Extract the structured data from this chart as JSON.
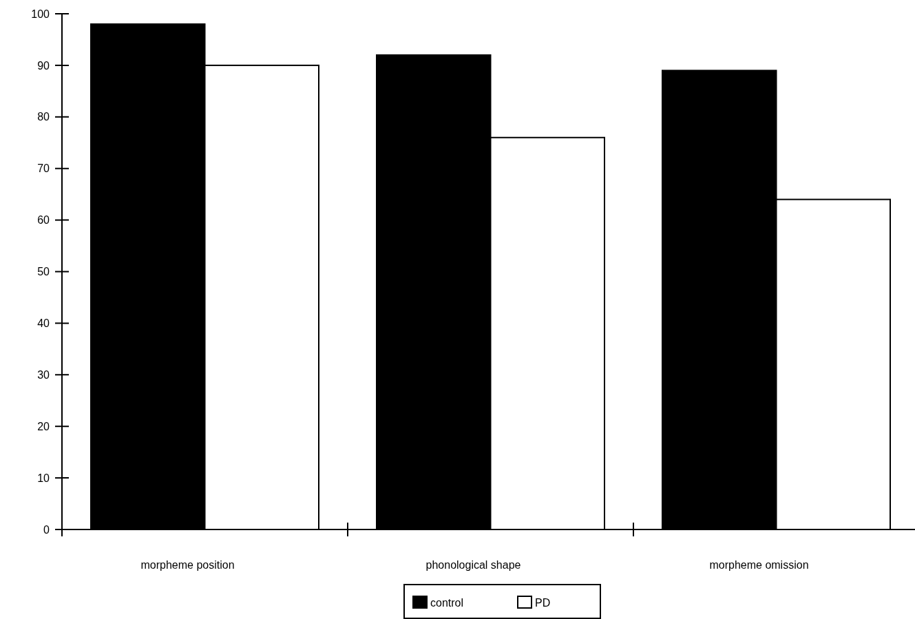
{
  "chart_data": {
    "type": "bar",
    "categories": [
      "morpheme position",
      "phonological shape",
      "morpheme omission"
    ],
    "series": [
      {
        "name": "control",
        "color": "#000000",
        "values": [
          98,
          92,
          89
        ]
      },
      {
        "name": "PD",
        "color": "#ffffff",
        "values": [
          90,
          76,
          64
        ]
      }
    ],
    "ylim": [
      0,
      100
    ],
    "yticks": [
      0,
      10,
      20,
      30,
      40,
      50,
      60,
      70,
      80,
      90,
      100
    ],
    "grid": false,
    "legend": "bottom"
  }
}
